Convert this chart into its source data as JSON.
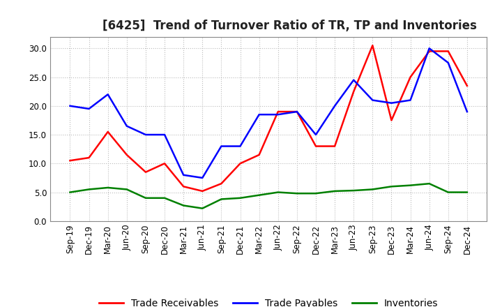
{
  "title": "[6425]  Trend of Turnover Ratio of TR, TP and Inventories",
  "ylim": [
    0.0,
    32.0
  ],
  "yticks": [
    0.0,
    5.0,
    10.0,
    15.0,
    20.0,
    25.0,
    30.0
  ],
  "x_labels": [
    "Sep-19",
    "Dec-19",
    "Mar-20",
    "Jun-20",
    "Sep-20",
    "Dec-20",
    "Mar-21",
    "Jun-21",
    "Sep-21",
    "Dec-21",
    "Mar-22",
    "Jun-22",
    "Sep-22",
    "Dec-22",
    "Mar-23",
    "Jun-23",
    "Sep-23",
    "Dec-23",
    "Mar-24",
    "Jun-24",
    "Sep-24",
    "Dec-24"
  ],
  "trade_receivables": [
    10.5,
    11.0,
    15.5,
    11.5,
    8.5,
    10.0,
    6.0,
    5.2,
    6.5,
    10.0,
    11.5,
    19.0,
    19.0,
    13.0,
    13.0,
    22.5,
    30.5,
    17.5,
    25.0,
    29.5,
    29.5,
    23.5
  ],
  "trade_payables": [
    20.0,
    19.5,
    22.0,
    16.5,
    15.0,
    15.0,
    8.0,
    7.5,
    13.0,
    13.0,
    18.5,
    18.5,
    19.0,
    15.0,
    20.0,
    24.5,
    21.0,
    20.5,
    21.0,
    30.0,
    27.5,
    19.0
  ],
  "inventories": [
    5.0,
    5.5,
    5.8,
    5.5,
    4.0,
    4.0,
    2.7,
    2.2,
    3.8,
    4.0,
    4.5,
    5.0,
    4.8,
    4.8,
    5.2,
    5.3,
    5.5,
    6.0,
    6.2,
    6.5,
    5.0,
    5.0
  ],
  "tr_color": "#ff0000",
  "tp_color": "#0000ff",
  "inv_color": "#008000",
  "legend_labels": [
    "Trade Receivables",
    "Trade Payables",
    "Inventories"
  ],
  "background_color": "#ffffff",
  "grid_color": "#bbbbbb",
  "title_fontsize": 12,
  "tick_fontsize": 8.5,
  "legend_fontsize": 10,
  "linewidth": 1.8
}
